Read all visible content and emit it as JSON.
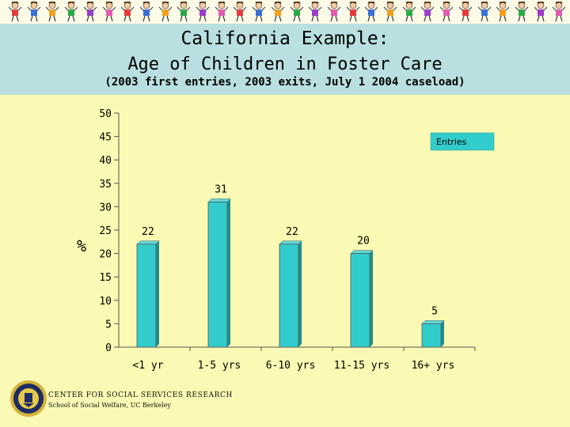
{
  "slide": {
    "title": "California Example:",
    "subtitle": "Age of Children in Foster Care",
    "note": "(2003 first entries, 2003 exits, July 1 2004 caseload)"
  },
  "footer": {
    "org": "CENTER FOR SOCIAL SERVICES RESEARCH",
    "school": "School of Social Welfare, UC Berkeley"
  },
  "colors": {
    "background": "#fafab4",
    "header_band": "#b9dfe1",
    "bar": "#33cccc",
    "bar_side": "#1f8f8f",
    "legend_box": "#33cccc"
  },
  "chart_data": {
    "type": "bar",
    "title": "Age of Children in Foster Care",
    "xlabel": "",
    "ylabel": "%",
    "ylim": [
      0,
      50
    ],
    "yticks": [
      0,
      5,
      10,
      15,
      20,
      25,
      30,
      35,
      40,
      45,
      50
    ],
    "categories": [
      "<1 yr",
      "1-5 yrs",
      "6-10 yrs",
      "11-15 yrs",
      "16+ yrs"
    ],
    "series": [
      {
        "name": "Entries",
        "values": [
          22,
          31,
          22,
          20,
          5
        ]
      }
    ],
    "legend": "top-right",
    "grid": false
  }
}
